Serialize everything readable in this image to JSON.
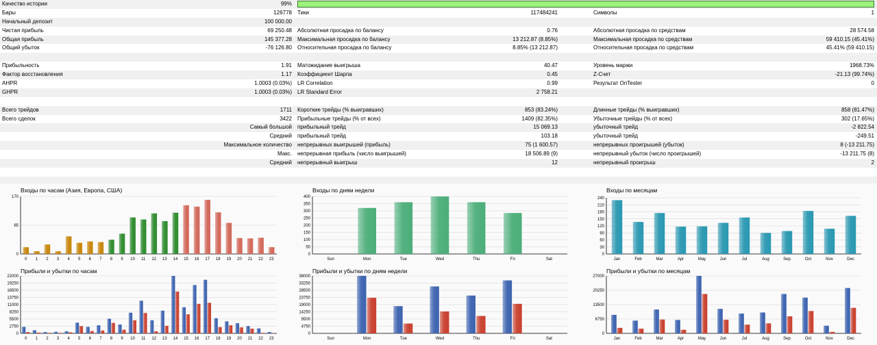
{
  "stats": {
    "rows": [
      {
        "shade": true,
        "l1": "Качество истории",
        "v1": "99%",
        "bar": true
      },
      {
        "shade": false,
        "l1": "Бары",
        "v1": "126778",
        "l2": "Тики",
        "v2": "117484241",
        "l3": "Символы",
        "v3": "1"
      },
      {
        "shade": true,
        "l1": "Начальный депозит",
        "v1": "100 000.00"
      },
      {
        "shade": false,
        "l1": "Чистая прибыль",
        "v1": "69 250.48",
        "l2": "Абсолютная просадка по балансу",
        "v2": "0.76",
        "l3": "Абсолютная просадка по средствам",
        "v3": "28 574.58"
      },
      {
        "shade": true,
        "l1": "Общая прибыль",
        "v1": "145 377.28",
        "l2": "Максимальная просадка по балансу",
        "v2": "13 212.87 (8.85%)",
        "l3": "Максимальная просадка по средствам",
        "v3": "59 410.15 (45.41%)"
      },
      {
        "shade": false,
        "l1": "Общий убыток",
        "v1": "-76 126.80",
        "l2": "Относительная просадка по балансу",
        "v2": "8.85% (13 212.87)",
        "l3": "Относительная просадка по средствам",
        "v3": "45.41% (59 410.15)"
      },
      {
        "shade": true
      },
      {
        "shade": false,
        "l1": "Прибыльность",
        "v1": "1.91",
        "l2": "Матожидание выигрыша",
        "v2": "40.47",
        "l3": "Уровень маржи",
        "v3": "1968.73%"
      },
      {
        "shade": true,
        "l1": "Фактор восстановления",
        "v1": "1.17",
        "l2": "Коэффициент Шарпа",
        "v2": "0.45",
        "l3": "Z-Счет",
        "v3": "-21.13 (99.74%)"
      },
      {
        "shade": false,
        "l1": "AHPR",
        "v1": "1.0003 (0.03%)",
        "l2": "LR Correlation",
        "v2": "0.99",
        "l3": "Результат OnTester",
        "v3": "0"
      },
      {
        "shade": true,
        "l1": "GHPR",
        "v1": "1.0003 (0.03%)",
        "l2": "LR Standard Error",
        "v2": "2 758.21"
      },
      {
        "shade": false
      },
      {
        "shade": true,
        "l1": "Всего трейдов",
        "v1": "1711",
        "l2": "Короткие трейды (% выигравших)",
        "v2": "853 (83.24%)",
        "l3": "Длинные трейды (% выигравших)",
        "v3": "858 (81.47%)"
      },
      {
        "shade": false,
        "l1": "Всего сделок",
        "v1": "3422",
        "l2": "Прибыльные трейды (% от всех)",
        "v2": "1409 (82.35%)",
        "l3": "Убыточные трейды (% от всех)",
        "v3": "302 (17.65%)"
      },
      {
        "shade": true,
        "p1": "Самый большой",
        "l2": "прибыльный трейд",
        "v2": "15 069.13",
        "l3": "убыточный трейд",
        "v3": "-2 822.54"
      },
      {
        "shade": false,
        "p1": "Средний",
        "l2": "прибыльный трейд",
        "v2": "103.18",
        "l3": "убыточный трейд",
        "v3": "-249.51"
      },
      {
        "shade": true,
        "p1": "Максимальное количество",
        "l2": "непрерывных выигрышей (прибыль)",
        "v2": "75 (1 600.57)",
        "l3": "непрерывных проигрышей (убыток)",
        "v3": "8 (-13 211.75)"
      },
      {
        "shade": false,
        "p1": "Макс.",
        "l2": "непрерывная прибыль (число выигрышей)",
        "v2": "18 506.89 (9)",
        "l3": "непрерывный убыток (число проигрышей)",
        "v3": "-13 211.75 (8)"
      },
      {
        "shade": true,
        "p1": "Средний",
        "l2": "непрерывный выигрыш",
        "v2": "12",
        "l3": "непрерывный проигрыш",
        "v3": "2"
      },
      {
        "shade": false
      },
      {
        "shade": true
      },
      {
        "shade": true
      }
    ]
  },
  "palette": {
    "asia": "#c8860a",
    "europe": "#2e8b2e",
    "usa": "#d2685a",
    "weekday": "#4cae7a",
    "month": "#2a98b2",
    "profit": "#3d63b0",
    "loss": "#c9402e",
    "grid": "#cfcfcf",
    "quality": "#9cf27a"
  },
  "chart_data": [
    {
      "id": "entries-hour",
      "type": "bar",
      "title": "Входы по часам (Азия, Европа, США)",
      "categories": [
        "0",
        "1",
        "2",
        "3",
        "4",
        "5",
        "6",
        "7",
        "8",
        "9",
        "10",
        "11",
        "12",
        "13",
        "14",
        "15",
        "16",
        "17",
        "18",
        "19",
        "20",
        "21",
        "22",
        "23"
      ],
      "values": [
        20,
        8,
        28,
        8,
        52,
        33,
        37,
        35,
        42,
        60,
        108,
        102,
        120,
        97,
        122,
        144,
        140,
        160,
        123,
        92,
        47,
        46,
        48,
        20
      ],
      "colors": [
        "asia",
        "asia",
        "asia",
        "asia",
        "asia",
        "asia",
        "asia",
        "asia",
        "europe",
        "europe",
        "europe",
        "europe",
        "europe",
        "europe",
        "europe",
        "usa",
        "usa",
        "usa",
        "usa",
        "usa",
        "usa",
        "usa",
        "usa",
        "usa"
      ],
      "ylim": [
        0,
        170
      ],
      "yticks": [
        0,
        85,
        170
      ],
      "grid": true
    },
    {
      "id": "entries-weekday",
      "type": "bar",
      "title": "Входы по дням недели",
      "categories": [
        "Sun",
        "Mon",
        "Tue",
        "Wed",
        "Thu",
        "Fri",
        "Sat"
      ],
      "values": [
        0,
        320,
        360,
        400,
        360,
        285,
        0
      ],
      "ylim": [
        0,
        400
      ],
      "yticks": [
        0,
        50,
        100,
        150,
        200,
        250,
        300,
        350,
        400
      ],
      "grid": true
    },
    {
      "id": "entries-month",
      "type": "bar",
      "title": "Входы по месяцам",
      "categories": [
        "Jan",
        "Feb",
        "Mar",
        "Apr",
        "May",
        "Jun",
        "Jul",
        "Aug",
        "Sep",
        "Oct",
        "Nov",
        "Dec"
      ],
      "values": [
        230,
        137,
        175,
        117,
        118,
        133,
        156,
        90,
        98,
        184,
        108,
        163
      ],
      "ylim": [
        0,
        240
      ],
      "yticks": [
        0,
        30,
        60,
        90,
        120,
        150,
        180,
        210,
        240
      ],
      "grid": true
    },
    {
      "id": "pl-hour",
      "type": "bar",
      "title": "Прибыли и убытки по часам",
      "categories": [
        "0",
        "1",
        "2",
        "3",
        "4",
        "5",
        "6",
        "7",
        "8",
        "9",
        "10",
        "11",
        "12",
        "13",
        "14",
        "15",
        "16",
        "17",
        "18",
        "19",
        "20",
        "21",
        "22",
        "23"
      ],
      "series": [
        {
          "color": "profit",
          "values": [
            2500,
            1200,
            500,
            600,
            800,
            4100,
            2500,
            3100,
            5600,
            3400,
            7900,
            12500,
            5000,
            8700,
            22000,
            10000,
            18500,
            20500,
            5800,
            4600,
            3900,
            2800,
            1900,
            500
          ]
        },
        {
          "color": "loss",
          "values": [
            500,
            300,
            200,
            200,
            400,
            2800,
            900,
            1100,
            4000,
            1400,
            5000,
            7800,
            800,
            2900,
            16000,
            7300,
            11300,
            11700,
            2400,
            3100,
            2300,
            1800,
            200,
            100
          ]
        }
      ],
      "ylim": [
        0,
        22000
      ],
      "yticks": [
        0,
        2750,
        5500,
        8250,
        11000,
        13750,
        16500,
        19250,
        22000
      ],
      "grid": true
    },
    {
      "id": "pl-weekday",
      "type": "bar",
      "title": "Прибыли и убытки по дням недели",
      "categories": [
        "Sun",
        "Mon",
        "Tue",
        "Wed",
        "Thu",
        "Fri",
        "Sat"
      ],
      "series": [
        {
          "color": "profit",
          "values": [
            0,
            38000,
            18000,
            31000,
            25000,
            35000,
            0
          ]
        },
        {
          "color": "loss",
          "values": [
            0,
            23500,
            6500,
            14500,
            11500,
            19500,
            0
          ]
        }
      ],
      "ylim": [
        0,
        38000
      ],
      "yticks": [
        0,
        4750,
        9500,
        14250,
        19000,
        23750,
        28500,
        33250,
        38000
      ],
      "grid": true
    },
    {
      "id": "pl-month",
      "type": "bar",
      "title": "Прибыли и убытки по месяцам",
      "categories": [
        "Jan",
        "Feb",
        "Mar",
        "Apr",
        "May",
        "Jun",
        "Jul",
        "Aug",
        "Sep",
        "Oct",
        "Nov",
        "Dec"
      ],
      "series": [
        {
          "color": "profit",
          "values": [
            8700,
            6000,
            11200,
            6300,
            27000,
            11500,
            9300,
            9800,
            18500,
            16800,
            3600,
            21300
          ]
        },
        {
          "color": "loss",
          "values": [
            2600,
            2200,
            6500,
            1700,
            18500,
            6400,
            4100,
            4700,
            8000,
            10500,
            700,
            12000
          ]
        }
      ],
      "ylim": [
        0,
        27000
      ],
      "yticks": [
        0,
        6750,
        13500,
        20250,
        27000
      ],
      "grid": true
    }
  ]
}
